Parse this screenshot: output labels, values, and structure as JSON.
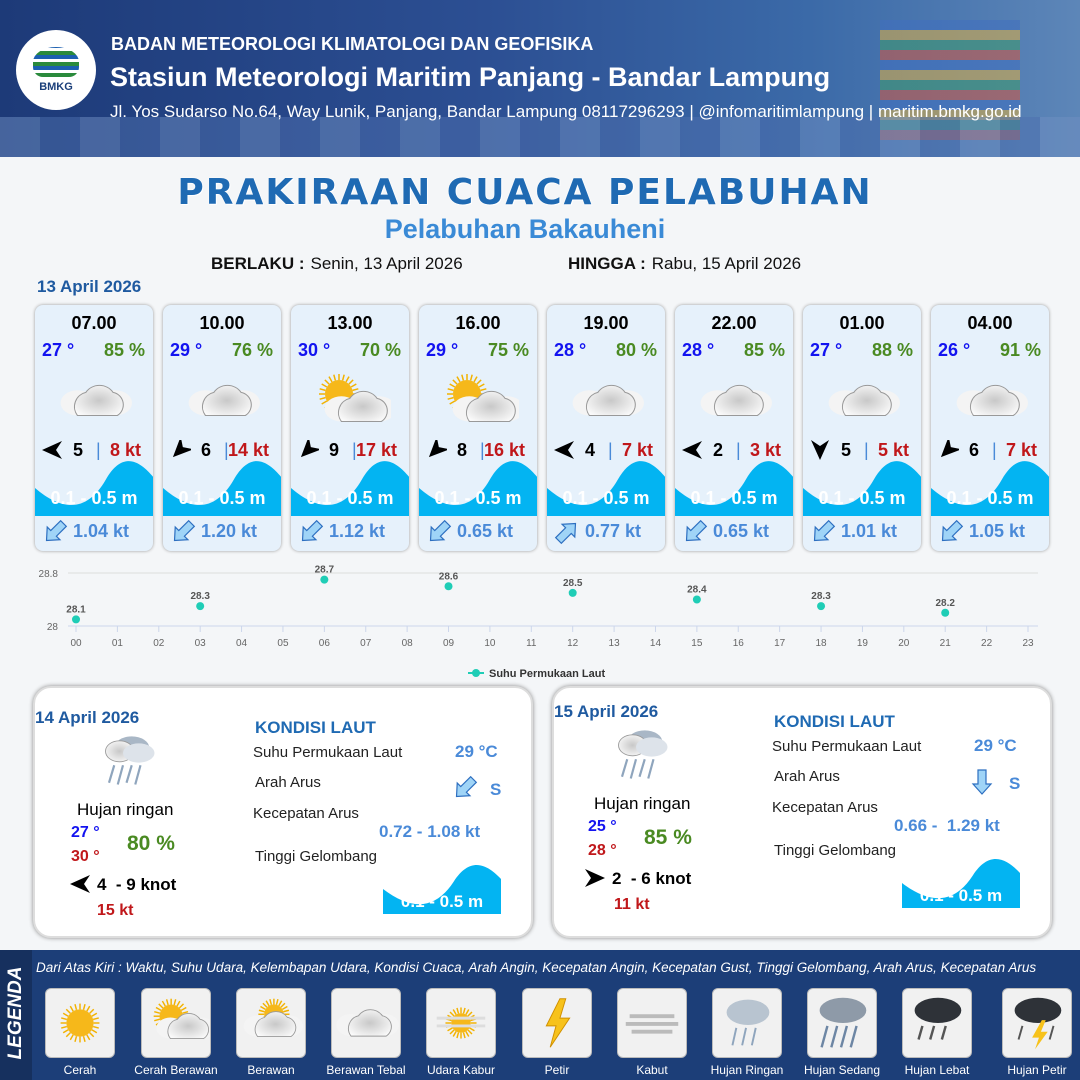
{
  "header": {
    "agency": "BADAN METEOROLOGI KLIMATOLOGI DAN GEOFISIKA",
    "station": "Stasiun Meteorologi Maritim Panjang - Bandar Lampung",
    "contact": "Jl. Yos Sudarso No.64, Way Lunik, Panjang, Bandar Lampung 08117296293 | @infomaritimlampung | maritim.bmkg.go.id",
    "logo_text": "BMKG"
  },
  "title": "PRAKIRAAN CUACA PELABUHAN",
  "subtitle": "Pelabuhan Bakauheni",
  "validity": {
    "from_label": "BERLAKU :",
    "from": "Senin, 13 April 2026",
    "to_label": "HINGGA :",
    "to": "Rabu, 15 April 2026"
  },
  "day1": {
    "date": "13 April 2026",
    "slots": [
      {
        "time": "07.00",
        "temp": "27 °",
        "rh": "85 %",
        "weather": "berawan-tebal",
        "wind_dir_deg": 270,
        "wind": "5",
        "gust": "8 kt",
        "wave": "0.1 - 0.5 m",
        "current_dir_deg": 225,
        "current": "1.04 kt"
      },
      {
        "time": "10.00",
        "temp": "29 °",
        "rh": "76 %",
        "weather": "berawan-tebal",
        "wind_dir_deg": 225,
        "wind": "6",
        "gust": "14 kt",
        "wave": "0.1 - 0.5 m",
        "current_dir_deg": 225,
        "current": "1.20 kt"
      },
      {
        "time": "13.00",
        "temp": "30 °",
        "rh": "70 %",
        "weather": "cerah-berawan",
        "wind_dir_deg": 225,
        "wind": "9",
        "gust": "17 kt",
        "wave": "0.1 - 0.5 m",
        "current_dir_deg": 225,
        "current": "1.12 kt"
      },
      {
        "time": "16.00",
        "temp": "29 °",
        "rh": "75 %",
        "weather": "cerah-berawan",
        "wind_dir_deg": 225,
        "wind": "8",
        "gust": "16 kt",
        "wave": "0.1 - 0.5 m",
        "current_dir_deg": 225,
        "current": "0.65 kt"
      },
      {
        "time": "19.00",
        "temp": "28 °",
        "rh": "80 %",
        "weather": "berawan-tebal",
        "wind_dir_deg": 270,
        "wind": "4",
        "gust": "7 kt",
        "wave": "0.1 - 0.5 m",
        "current_dir_deg": 45,
        "current": "0.77 kt"
      },
      {
        "time": "22.00",
        "temp": "28 °",
        "rh": "85 %",
        "weather": "berawan-tebal",
        "wind_dir_deg": 270,
        "wind": "2",
        "gust": "3 kt",
        "wave": "0.1 - 0.5 m",
        "current_dir_deg": 225,
        "current": "0.65 kt"
      },
      {
        "time": "01.00",
        "temp": "27 °",
        "rh": "88 %",
        "weather": "berawan-tebal",
        "wind_dir_deg": 180,
        "wind": "5",
        "gust": "5 kt",
        "wave": "0.1 - 0.5 m",
        "current_dir_deg": 225,
        "current": "1.01 kt"
      },
      {
        "time": "04.00",
        "temp": "26 °",
        "rh": "91 %",
        "weather": "berawan-tebal",
        "wind_dir_deg": 225,
        "wind": "6",
        "gust": "7 kt",
        "wave": "0.1 - 0.5 m",
        "current_dir_deg": 225,
        "current": "1.05 kt"
      }
    ]
  },
  "chart_data": {
    "type": "scatter",
    "x_ticks": [
      "00",
      "01",
      "02",
      "03",
      "04",
      "05",
      "06",
      "07",
      "08",
      "09",
      "10",
      "11",
      "12",
      "13",
      "14",
      "15",
      "16",
      "17",
      "18",
      "19",
      "20",
      "21",
      "22",
      "23"
    ],
    "y_ticks": [
      "28",
      "28.8"
    ],
    "ylim": [
      28,
      28.8
    ],
    "grid": true,
    "legend_position": "bottom",
    "series": [
      {
        "name": "Suhu Permukaan Laut",
        "color": "#1fcdb6",
        "x": [
          "00",
          "03",
          "06",
          "09",
          "12",
          "15",
          "18",
          "21"
        ],
        "values": [
          28.1,
          28.3,
          28.7,
          28.6,
          28.5,
          28.4,
          28.3,
          28.2
        ]
      }
    ]
  },
  "days": [
    {
      "date": "14 April 2026",
      "weather": "Hujan ringan",
      "tmin": "27 °",
      "tmax": "30 °",
      "rh": "80 %",
      "wind_dir_deg": 270,
      "wind": "4  - 9 knot",
      "gust": "15 kt",
      "sea": {
        "heading": "KONDISI LAUT",
        "sst_label": "Suhu Permukaan Laut",
        "sst": "29 °C",
        "dir_label": "Arah Arus",
        "dir": "S",
        "current_dir_deg": 225,
        "speed_label": "Kecepatan Arus",
        "speed": "0.72 - 1.08 kt",
        "wave_label": "Tinggi Gelombang",
        "wave": "0.1 - 0.5 m"
      }
    },
    {
      "date": "15 April 2026",
      "weather": "Hujan ringan",
      "tmin": "25 °",
      "tmax": "28 °",
      "rh": "85 %",
      "wind_dir_deg": 90,
      "wind": "2  - 6 knot",
      "gust": "11 kt",
      "sea": {
        "heading": "KONDISI LAUT",
        "sst_label": "Suhu Permukaan Laut",
        "sst": "29 °C",
        "dir_label": "Arah Arus",
        "dir": "S",
        "current_dir_deg": 180,
        "speed_label": "Kecepatan Arus",
        "speed": "0.66 -  1.29 kt",
        "wave_label": "Tinggi Gelombang",
        "wave": "0.1 - 0.5 m"
      }
    }
  ],
  "legend": {
    "title": "LEGENDA",
    "description": "Dari Atas Kiri : Waktu, Suhu Udara, Kelembapan Udara, Kondisi Cuaca, Arah Angin, Kecepatan Angin, Kecepatan Gust, Tinggi Gelombang, Arah Arus, Kecepatan Arus",
    "items": [
      {
        "label": "Cerah",
        "icon": "sun"
      },
      {
        "label": "Cerah Berawan",
        "icon": "sun-cloud"
      },
      {
        "label": "Berawan",
        "icon": "cloud-sun"
      },
      {
        "label": "Berawan Tebal",
        "icon": "cloud"
      },
      {
        "label": "Udara Kabur",
        "icon": "haze"
      },
      {
        "label": "Petir",
        "icon": "lightning"
      },
      {
        "label": "Kabut",
        "icon": "fog"
      },
      {
        "label": "Hujan Ringan",
        "icon": "rain-light"
      },
      {
        "label": "Hujan Sedang",
        "icon": "rain-moderate"
      },
      {
        "label": "Hujan Lebat",
        "icon": "rain-heavy"
      },
      {
        "label": "Hujan Petir",
        "icon": "thunderstorm"
      }
    ]
  },
  "colors": {
    "temp": "#1313f0",
    "humidity": "#4a8a22",
    "gust": "#c0171a",
    "wave": "#03b4f2",
    "current": "#4a8ad8",
    "title": "#1f6ab3"
  }
}
